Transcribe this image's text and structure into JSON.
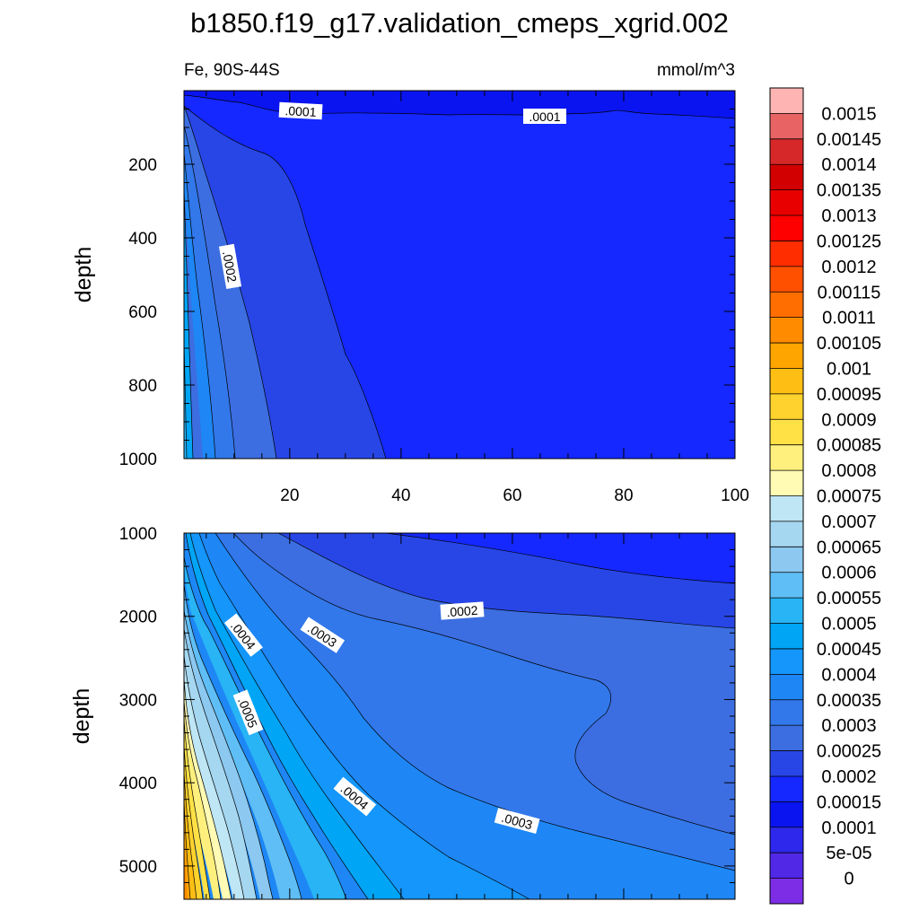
{
  "title": "b1850.f19_g17.validation_cmeps_xgrid.002",
  "subtitle_left": "Fe, 90S-44S",
  "subtitle_right": "mmol/m^3",
  "chart_data": {
    "type": "contour",
    "ylabel": "depth",
    "panels": [
      {
        "name": "upper",
        "ylim": [
          0,
          1000
        ],
        "xlim": [
          1,
          100
        ],
        "yticks": [
          "200",
          "400",
          "600",
          "800",
          "1000"
        ],
        "ytick_values": [
          200,
          400,
          600,
          800,
          1000
        ],
        "xticks": [
          "20",
          "40",
          "60",
          "80",
          "100"
        ],
        "xtick_values": [
          20,
          40,
          60,
          80,
          100
        ],
        "contour_labels": [
          ".0001",
          ".0001",
          ".0002"
        ]
      },
      {
        "name": "lower",
        "ylim": [
          1000,
          5400
        ],
        "xlim": [
          1,
          100
        ],
        "yticks": [
          "1000",
          "2000",
          "3000",
          "4000",
          "5000"
        ],
        "ytick_values": [
          1000,
          2000,
          3000,
          4000,
          5000
        ],
        "contour_labels": [
          ".0004",
          ".0003",
          ".0002",
          ".0005",
          ".0004",
          ".0003"
        ]
      }
    ],
    "colorbar": {
      "labels": [
        "0.0015",
        "0.00145",
        "0.0014",
        "0.00135",
        "0.0013",
        "0.00125",
        "0.0012",
        "0.00115",
        "0.0011",
        "0.00105",
        "0.001",
        "0.00095",
        "0.0009",
        "0.00085",
        "0.0008",
        "0.00075",
        "0.0007",
        "0.00065",
        "0.0006",
        "0.00055",
        "0.0005",
        "0.00045",
        "0.0004",
        "0.00035",
        "0.0003",
        "0.00025",
        "0.0002",
        "0.00015",
        "0.0001",
        "5e-05",
        "0"
      ],
      "colors": [
        "#ffb4b4",
        "#e86464",
        "#d62828",
        "#d20000",
        "#e80000",
        "#ff0000",
        "#ff2d00",
        "#ff5000",
        "#ff6e00",
        "#ff8c00",
        "#ffa500",
        "#ffbe14",
        "#ffd22d",
        "#ffe146",
        "#fff07d",
        "#fffab4",
        "#bee6f5",
        "#a5d7f0",
        "#8cc8f0",
        "#5fbef5",
        "#28b4f5",
        "#00a5f5",
        "#1496fa",
        "#1e87f5",
        "#3278eb",
        "#3c6ee1",
        "#2846e6",
        "#1428ff",
        "#0a14f0",
        "#2d28eb",
        "#5028e6",
        "#7d2de6"
      ]
    }
  }
}
